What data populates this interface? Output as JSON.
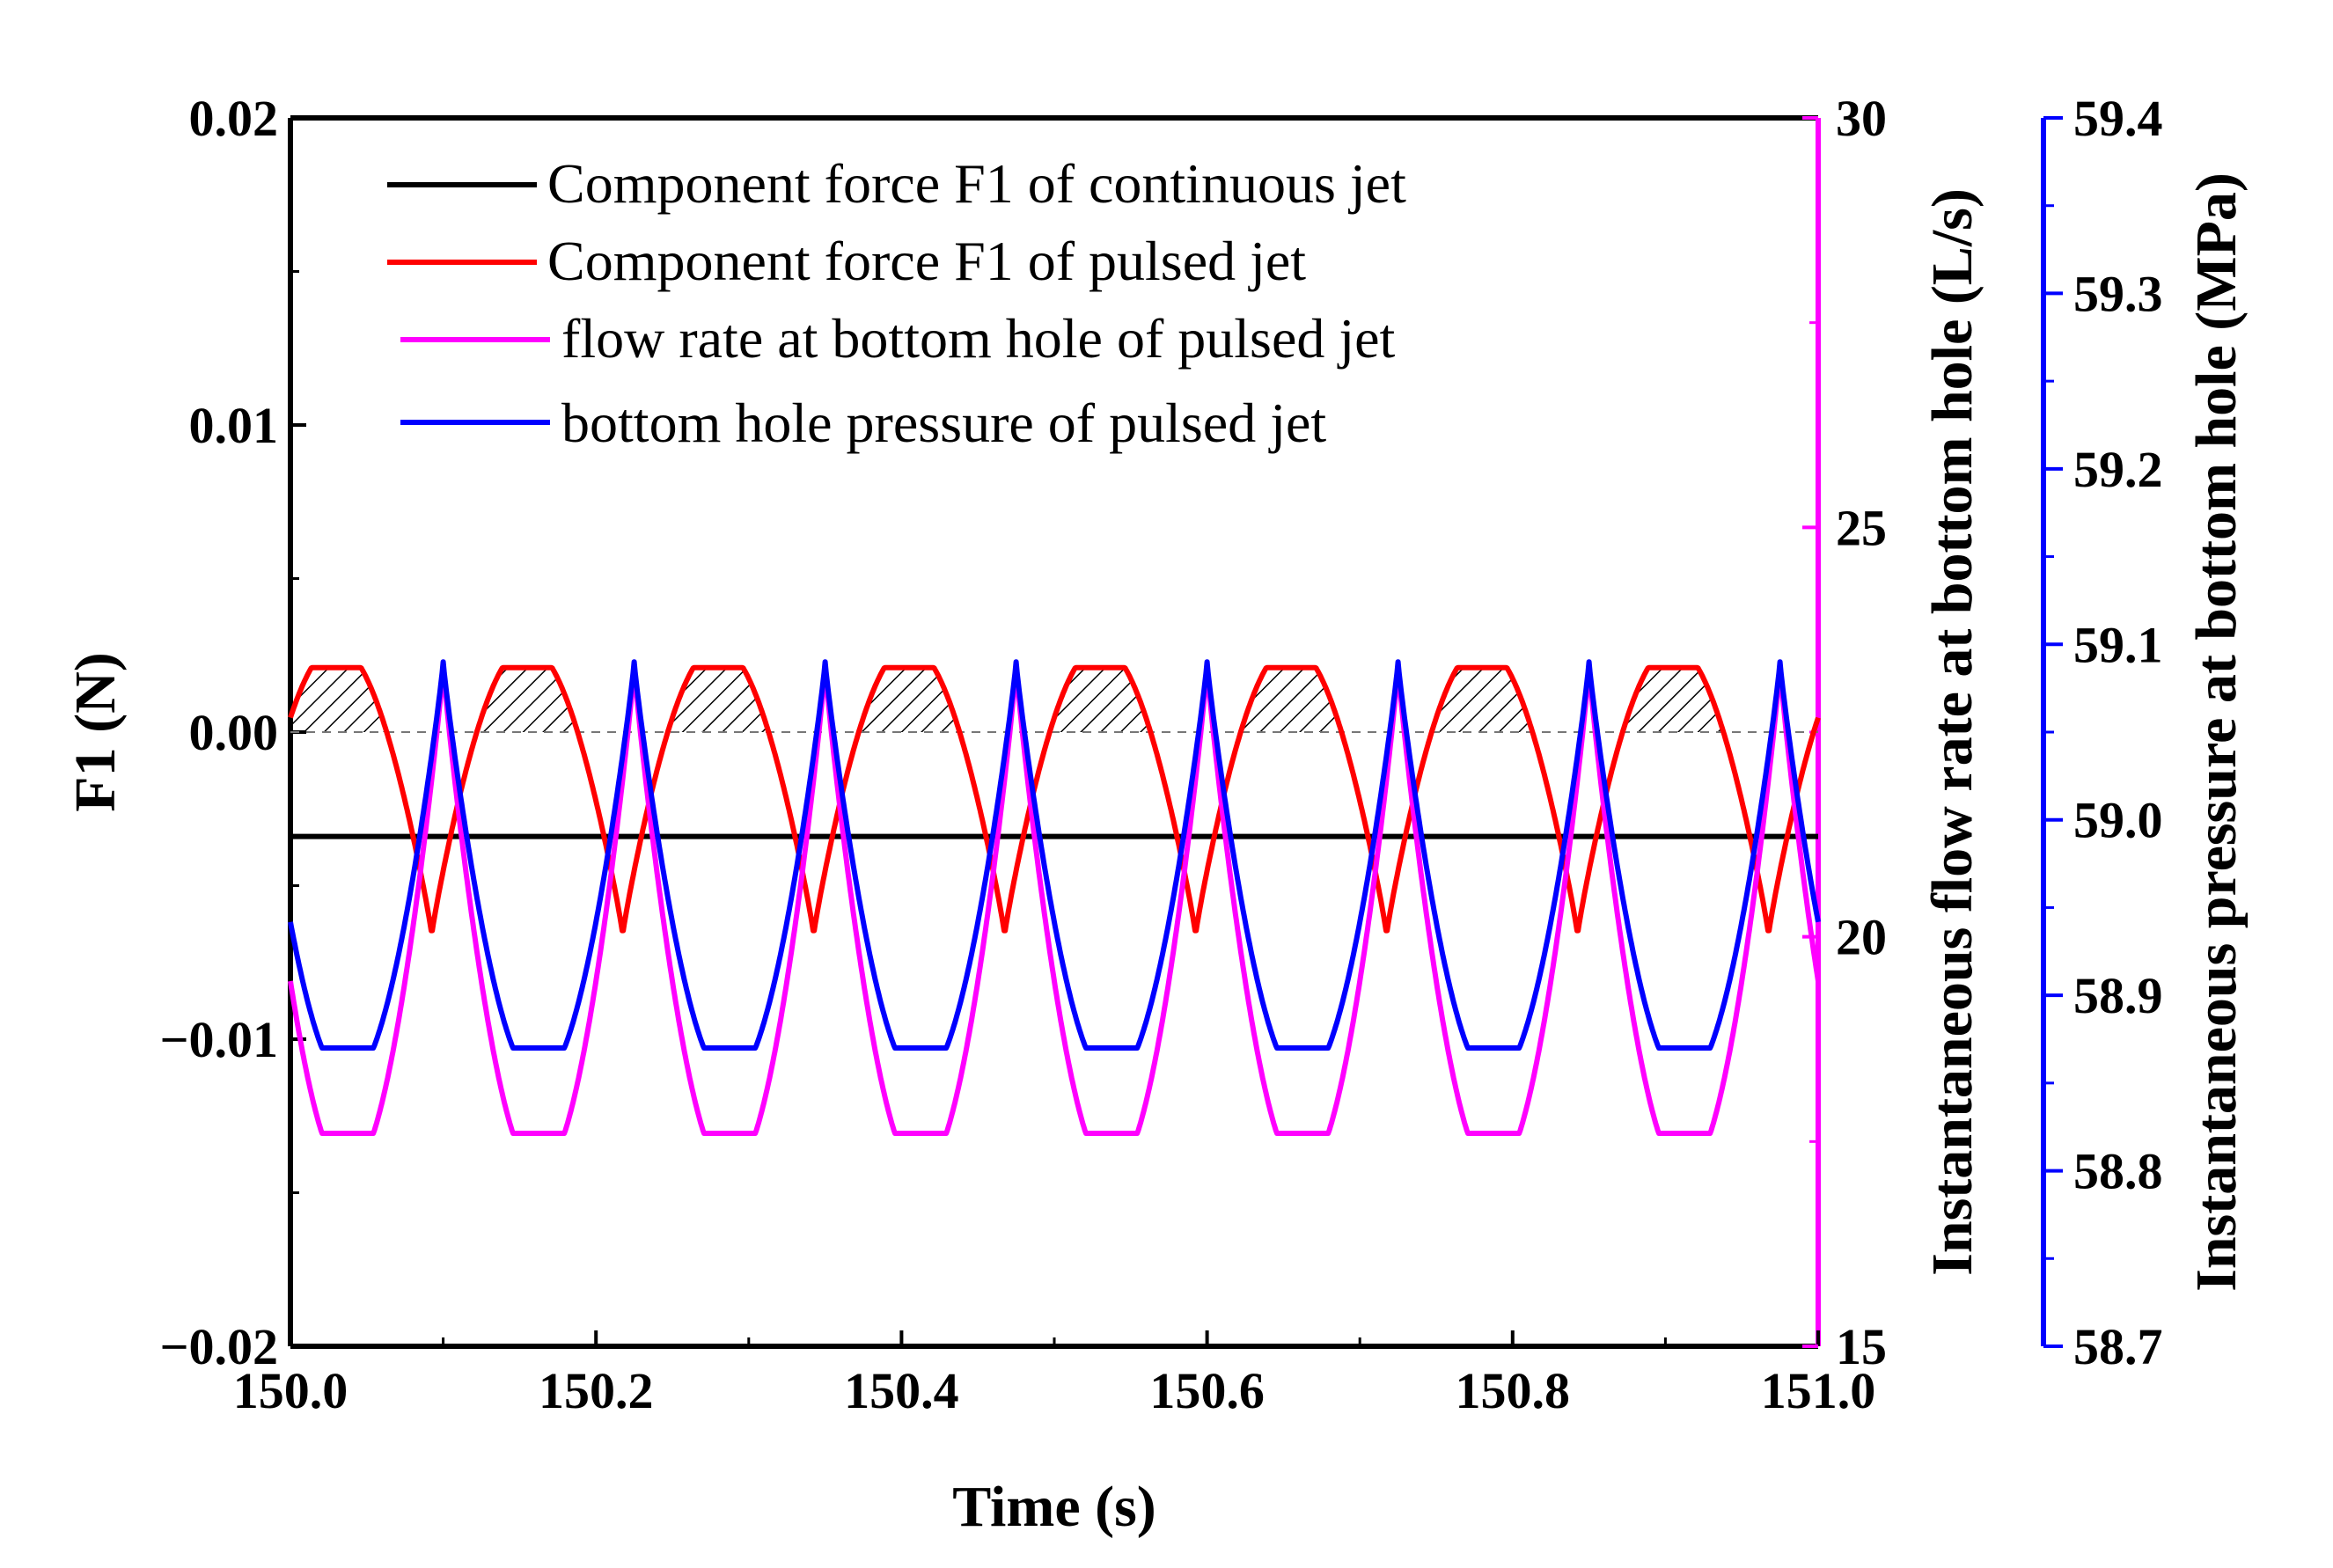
{
  "chart_data": {
    "type": "line",
    "title": "",
    "xlabel": "Time (s)",
    "ylabel": "F1 (N)",
    "ylabel_right1": "Instantaneous flow rate at bottom hole (L/s)",
    "ylabel_right2": "Instantaneous pressure at bottom hole (MPa)",
    "xlim": [
      150.0,
      151.0
    ],
    "ylim": [
      -0.02,
      0.02
    ],
    "ylim_right1": [
      15,
      30
    ],
    "ylim_right2": [
      58.7,
      59.4
    ],
    "x_ticks": [
      "150.0",
      "150.2",
      "150.4",
      "150.6",
      "150.8",
      "151.0"
    ],
    "y_ticks": [
      "0.02",
      "0.01",
      "0.00",
      "−0.01",
      "−0.02"
    ],
    "y_ticks_right1": [
      "30",
      "25",
      "20",
      "15"
    ],
    "y_ticks_right2": [
      "59.4",
      "59.3",
      "59.2",
      "59.1",
      "59.0",
      "58.9",
      "58.8",
      "58.7"
    ],
    "period_s": 0.125,
    "series": [
      {
        "name": "Component force F1 of continuous jet",
        "axis": "left",
        "color": "#000000",
        "shape": "constant",
        "values": [
          -0.0034
        ]
      },
      {
        "name": "Component force F1 of pulsed jet",
        "axis": "left",
        "color": "#ff0000",
        "shape": "periodic",
        "min": -0.0066,
        "max": 0.0021,
        "peak_times": [
          150.03,
          150.155,
          150.28,
          150.405,
          150.53,
          150.655,
          150.78,
          150.905
        ],
        "trough_times": [
          150.105,
          150.23,
          150.355,
          150.48,
          150.605,
          150.73,
          150.855,
          150.98
        ]
      },
      {
        "name": "flow rate at bottom hole of pulsed jet",
        "axis": "right1",
        "color": "#ff00ff",
        "shape": "periodic",
        "min": 17.6,
        "max": 23.3,
        "peak_times": [
          150.1,
          150.225,
          150.35,
          150.475,
          150.6,
          150.725,
          150.85,
          150.975
        ],
        "trough_times": [
          150.035,
          150.16,
          150.285,
          150.41,
          150.535,
          150.66,
          150.785,
          150.91
        ]
      },
      {
        "name": "bottom hole pressure of pulsed jet",
        "axis": "right2",
        "color": "#0000ff",
        "shape": "periodic",
        "min": 58.87,
        "max": 59.09,
        "peak_times": [
          150.1,
          150.225,
          150.35,
          150.475,
          150.6,
          150.725,
          150.85,
          150.975
        ],
        "trough_times": [
          150.035,
          150.16,
          150.285,
          150.41,
          150.535,
          150.66,
          150.785,
          150.91
        ]
      }
    ],
    "annotations": [
      "hatched regions where pulsed-jet F1 exceeds 0",
      "dashed reference line at F1 = 0"
    ],
    "grid": false,
    "legend": "top-left inside plot"
  }
}
